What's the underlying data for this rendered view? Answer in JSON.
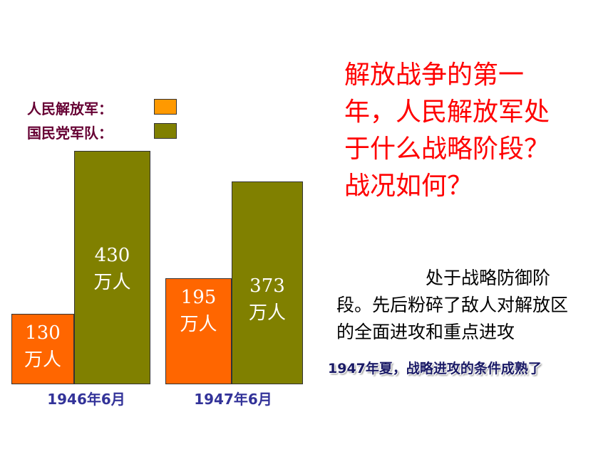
{
  "chart_data": {
    "type": "bar",
    "categories": [
      "1946年6月",
      "1947年6月"
    ],
    "series": [
      {
        "name": "人民解放军：",
        "color": "#ff6600",
        "values": [
          130,
          195
        ],
        "value_labels": [
          "130万人",
          "195万人"
        ]
      },
      {
        "name": "国民党军队：",
        "color": "#808000",
        "values": [
          430,
          373
        ],
        "value_labels": [
          "430万人",
          "373万人"
        ]
      }
    ]
  },
  "question": "解放战争的第一年，人民解放军处于什么战略阶段？战况如何？",
  "answer": "处于战略防御阶段。先后粉碎了敌人对解放区的全面进攻和重点进攻",
  "note": "1947年夏，战略进攻的条件成熟了"
}
